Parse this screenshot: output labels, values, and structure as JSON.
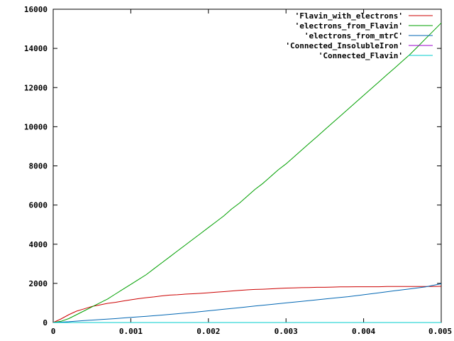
{
  "chart_data": {
    "type": "line",
    "title": "",
    "xlabel": "",
    "ylabel": "",
    "xlim": [
      0,
      0.005
    ],
    "ylim": [
      0,
      16000
    ],
    "grid": false,
    "legend_position": "top-right",
    "x_ticks": [
      {
        "value": 0,
        "label": "0"
      },
      {
        "value": 0.001,
        "label": "0.001"
      },
      {
        "value": 0.002,
        "label": "0.002"
      },
      {
        "value": 0.003,
        "label": "0.003"
      },
      {
        "value": 0.004,
        "label": "0.004"
      },
      {
        "value": 0.005,
        "label": "0.005"
      }
    ],
    "y_ticks": [
      {
        "value": 0,
        "label": "0"
      },
      {
        "value": 2000,
        "label": "2000"
      },
      {
        "value": 4000,
        "label": "4000"
      },
      {
        "value": 6000,
        "label": "6000"
      },
      {
        "value": 8000,
        "label": "8000"
      },
      {
        "value": 10000,
        "label": "10000"
      },
      {
        "value": 12000,
        "label": "12000"
      },
      {
        "value": 14000,
        "label": "14000"
      },
      {
        "value": 16000,
        "label": "16000"
      }
    ],
    "series": [
      {
        "name": "'Flavin_with_electrons'",
        "color": "#cc0000",
        "x": [
          0,
          0.0001,
          0.0002,
          0.0003,
          0.0004,
          0.0005,
          0.0006,
          0.0007,
          0.0008,
          0.0009,
          0.001,
          0.0011,
          0.0012,
          0.0013,
          0.0014,
          0.0015,
          0.0016,
          0.0017,
          0.0018,
          0.0019,
          0.002,
          0.0021,
          0.0022,
          0.0023,
          0.0024,
          0.0025,
          0.0026,
          0.0027,
          0.0028,
          0.0029,
          0.003,
          0.0031,
          0.0032,
          0.0033,
          0.0034,
          0.0035,
          0.0036,
          0.0037,
          0.0038,
          0.0039,
          0.004,
          0.0041,
          0.0042,
          0.0043,
          0.0044,
          0.0045,
          0.0046,
          0.0047,
          0.0048,
          0.0049,
          0.005
        ],
        "y": [
          0,
          180,
          400,
          580,
          700,
          820,
          900,
          980,
          1030,
          1100,
          1160,
          1220,
          1270,
          1310,
          1360,
          1400,
          1420,
          1450,
          1470,
          1490,
          1520,
          1550,
          1580,
          1610,
          1640,
          1670,
          1690,
          1700,
          1720,
          1740,
          1760,
          1770,
          1780,
          1790,
          1800,
          1800,
          1810,
          1820,
          1820,
          1830,
          1830,
          1830,
          1830,
          1840,
          1840,
          1840,
          1840,
          1840,
          1840,
          1840,
          1850
        ]
      },
      {
        "name": "'electrons_from_Flavin'",
        "color": "#00a000",
        "x": [
          0,
          0.0001,
          0.0002,
          0.0003,
          0.0004,
          0.0005,
          0.0006,
          0.0007,
          0.0008,
          0.0009,
          0.001,
          0.0011,
          0.0012,
          0.0013,
          0.0014,
          0.0015,
          0.0016,
          0.0017,
          0.0018,
          0.0019,
          0.002,
          0.0021,
          0.0022,
          0.0023,
          0.0024,
          0.0025,
          0.0026,
          0.0027,
          0.0028,
          0.0029,
          0.003,
          0.0031,
          0.0032,
          0.0033,
          0.0034,
          0.0035,
          0.0036,
          0.0037,
          0.0038,
          0.0039,
          0.004,
          0.0041,
          0.0042,
          0.0043,
          0.0044,
          0.0045,
          0.0046,
          0.0047,
          0.0048,
          0.0049,
          0.005
        ],
        "y": [
          0,
          60,
          200,
          400,
          600,
          800,
          1000,
          1200,
          1450,
          1700,
          1950,
          2200,
          2450,
          2750,
          3050,
          3350,
          3650,
          3950,
          4250,
          4550,
          4850,
          5150,
          5450,
          5800,
          6100,
          6450,
          6800,
          7100,
          7450,
          7800,
          8100,
          8450,
          8800,
          9150,
          9500,
          9850,
          10200,
          10550,
          10900,
          11250,
          11600,
          11950,
          12300,
          12650,
          13000,
          13350,
          13700,
          14100,
          14500,
          14900,
          15300
        ]
      },
      {
        "name": "'electrons_from_mtrC'",
        "color": "#0066b3",
        "x": [
          0,
          0.0002,
          0.0004,
          0.0006,
          0.0008,
          0.001,
          0.0012,
          0.0014,
          0.0016,
          0.0018,
          0.002,
          0.0022,
          0.0024,
          0.0026,
          0.0028,
          0.003,
          0.0032,
          0.0034,
          0.0036,
          0.0038,
          0.004,
          0.0042,
          0.0044,
          0.0046,
          0.0048,
          0.005
        ],
        "y": [
          0,
          40,
          100,
          150,
          200,
          260,
          320,
          380,
          450,
          520,
          600,
          680,
          760,
          840,
          920,
          1000,
          1080,
          1160,
          1240,
          1320,
          1420,
          1520,
          1620,
          1720,
          1820,
          1980
        ]
      },
      {
        "name": "'Connected_InsolubleIron'",
        "color": "#9900cc",
        "x": [
          0,
          0.001,
          0.002,
          0.003,
          0.004,
          0.005
        ],
        "y": [
          0,
          0,
          0,
          0,
          0,
          0
        ]
      },
      {
        "name": "'Connected_Flavin'",
        "color": "#00cccc",
        "x": [
          0,
          0.001,
          0.002,
          0.003,
          0.004,
          0.005
        ],
        "y": [
          0,
          0,
          0,
          0,
          0,
          0
        ]
      }
    ]
  }
}
